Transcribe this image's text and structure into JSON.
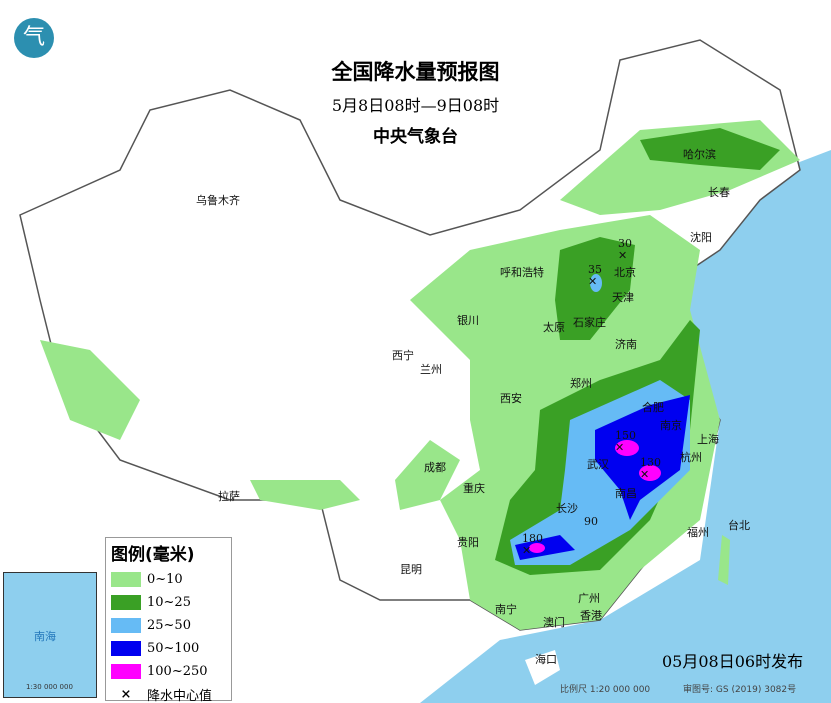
{
  "header": {
    "title": "全国降水量预报图",
    "period": "5月8日08时—9日08时",
    "issuer": "中央气象台"
  },
  "legend": {
    "title": "图例(毫米)",
    "items": [
      {
        "label": "0~10",
        "color": "#99e68a"
      },
      {
        "label": "10~25",
        "color": "#3aa025"
      },
      {
        "label": "25~50",
        "color": "#66bbf5"
      },
      {
        "label": "50~100",
        "color": "#0000f0"
      },
      {
        "label": "100~250",
        "color": "#ff00ff"
      }
    ],
    "center_label": "降水中心值",
    "center_symbol": "×"
  },
  "cities": [
    "乌鲁木齐",
    "哈尔滨",
    "长春",
    "沈阳",
    "呼和浩特",
    "北京",
    "天津",
    "石家庄",
    "太原",
    "济南",
    "银川",
    "西宁",
    "兰州",
    "西安",
    "郑州",
    "合肥",
    "南京",
    "上海",
    "武汉",
    "杭州",
    "成都",
    "重庆",
    "长沙",
    "南昌",
    "拉萨",
    "贵阳",
    "昆明",
    "福州",
    "台北",
    "南宁",
    "广州",
    "香港",
    "澳门",
    "海口"
  ],
  "centers": [
    "30",
    "35",
    "150",
    "130",
    "90",
    "180"
  ],
  "footer": {
    "issued": "05月08日06时发布",
    "scale": "比例尺 1:20 000 000",
    "review": "审图号: GS (2019) 3082号"
  },
  "inset": {
    "label": "南海",
    "scale": "1:30 000 000"
  },
  "logo": "气"
}
